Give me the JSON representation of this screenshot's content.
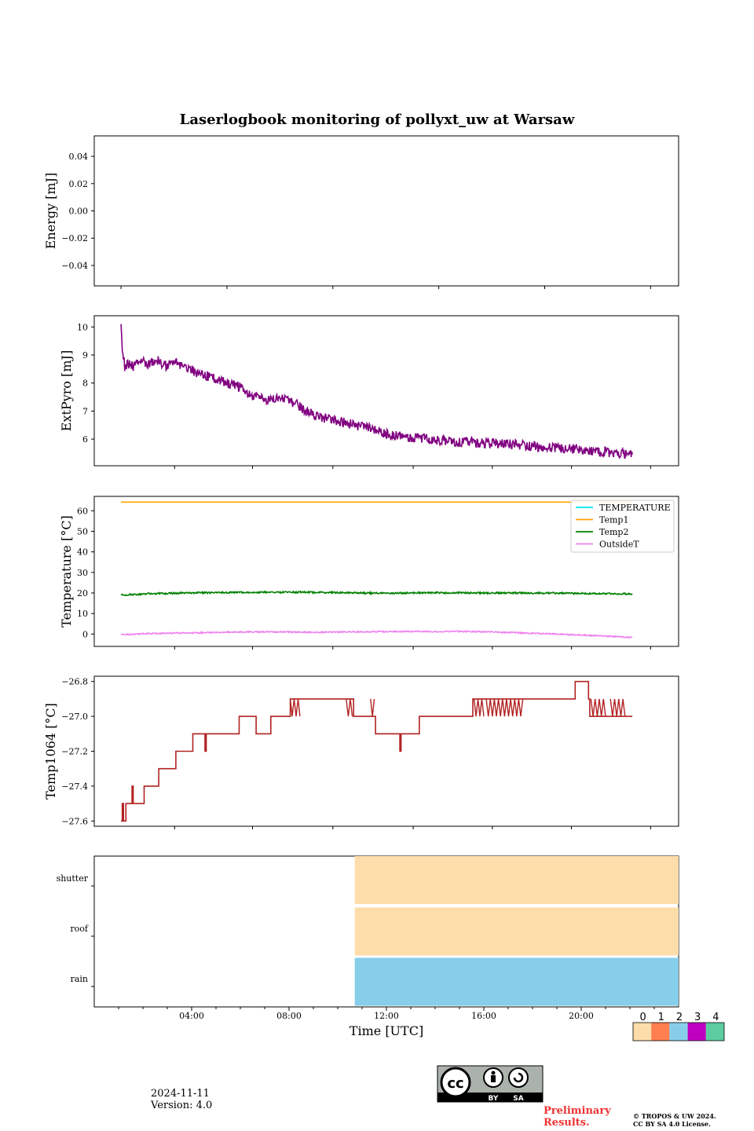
{
  "chart_data": [
    {
      "type": "line",
      "title": "Laserlogbook monitoring of pollyxt_uw at Warsaw",
      "ylabel": "Energy [mJ]",
      "ylim": [
        -0.055,
        0.055
      ],
      "yticks": [
        0.04,
        0.02,
        0.0,
        -0.02,
        -0.04
      ],
      "ytick_labels": [
        "0.04",
        "0.02",
        "0.00",
        "−0.02",
        "−0.04"
      ],
      "series": []
    },
    {
      "type": "line",
      "ylabel": "ExtPyro [mJ]",
      "ylim": [
        5.05,
        10.4
      ],
      "yticks": [
        10,
        9,
        8,
        7,
        6
      ],
      "ytick_labels": [
        "10",
        "9",
        "8",
        "7",
        "6"
      ],
      "series": [
        {
          "color": "#800080",
          "x_hours": [
            1.1,
            1.15,
            1.25,
            1.4,
            1.6,
            1.9,
            2.2,
            2.6,
            3.0,
            3.4,
            3.9,
            4.4,
            4.9,
            5.4,
            5.9,
            6.3,
            6.7,
            7.2,
            7.7,
            8.2,
            8.7,
            9.2,
            9.7,
            10.2,
            10.7,
            11.3,
            11.9,
            12.5,
            13.1,
            13.7,
            14.3,
            14.9,
            15.5,
            16.1,
            16.7,
            17.3,
            17.9,
            18.5,
            19.1,
            19.7,
            20.3,
            20.9,
            21.5,
            22.1
          ],
          "values": [
            10.1,
            9.3,
            8.6,
            8.7,
            8.6,
            8.8,
            8.7,
            8.8,
            8.6,
            8.7,
            8.5,
            8.3,
            8.2,
            8.0,
            7.9,
            7.6,
            7.5,
            7.4,
            7.5,
            7.3,
            7.0,
            6.8,
            6.7,
            6.6,
            6.5,
            6.4,
            6.2,
            6.1,
            6.05,
            6.0,
            5.95,
            5.9,
            5.9,
            5.85,
            5.85,
            5.8,
            5.75,
            5.7,
            5.7,
            5.65,
            5.6,
            5.55,
            5.5,
            5.45
          ]
        }
      ]
    },
    {
      "type": "line",
      "ylabel": "Temperature [°C]",
      "ylim": [
        -6,
        67
      ],
      "yticks": [
        60,
        50,
        40,
        30,
        20,
        10,
        0
      ],
      "ytick_labels": [
        "60",
        "50",
        "40",
        "30",
        "20",
        "10",
        "0"
      ],
      "legend_placement": "top-right",
      "series": [
        {
          "name": "TEMPERATURE",
          "color": "#00e5ee",
          "x_hours": [],
          "values": []
        },
        {
          "name": "Temp1",
          "color": "#ffa500",
          "x_hours": [
            1.1,
            22.1
          ],
          "values": [
            64.2,
            64.2
          ]
        },
        {
          "name": "Temp2",
          "color": "#008000",
          "x_hours": [
            1.1,
            2.0,
            3.0,
            4.0,
            5.0,
            6.0,
            7.0,
            8.0,
            9.0,
            10.0,
            11.0,
            12.0,
            13.0,
            14.0,
            15.0,
            16.0,
            17.0,
            18.0,
            19.0,
            20.0,
            21.0,
            22.1
          ],
          "values": [
            19.0,
            19.5,
            19.8,
            20.0,
            20.2,
            20.3,
            20.3,
            20.4,
            20.3,
            20.2,
            20.0,
            19.9,
            20.0,
            20.1,
            20.1,
            20.0,
            20.0,
            20.0,
            19.9,
            19.8,
            19.7,
            19.6
          ]
        },
        {
          "name": "OutsideT",
          "color": "#ee82ee",
          "x_hours": [
            1.1,
            2.0,
            3.0,
            4.0,
            5.0,
            6.0,
            7.0,
            8.0,
            9.0,
            10.0,
            11.0,
            12.0,
            13.0,
            14.0,
            15.0,
            16.0,
            17.0,
            18.0,
            19.0,
            20.0,
            21.0,
            22.1
          ],
          "values": [
            -0.3,
            0.2,
            0.4,
            0.6,
            0.8,
            1.0,
            1.1,
            1.0,
            0.9,
            1.0,
            1.1,
            1.2,
            1.3,
            1.2,
            1.3,
            1.1,
            0.8,
            0.4,
            0.0,
            -0.5,
            -1.0,
            -1.6
          ]
        }
      ]
    },
    {
      "type": "line",
      "ylabel": "Temp1064 [°C]",
      "ylim": [
        -27.63,
        -26.77
      ],
      "yticks": [
        -26.8,
        -27.0,
        -27.2,
        -27.4,
        -27.6
      ],
      "ytick_labels": [
        "−26.8",
        "−27.0",
        "−27.2",
        "−27.4",
        "−27.6"
      ],
      "series": [
        {
          "color": "#b22222",
          "x_hours": [
            1.1,
            1.15,
            1.2,
            1.25,
            1.3,
            1.35,
            1.5,
            1.55,
            1.6,
            1.65,
            2.0,
            2.05,
            2.6,
            2.65,
            2.7,
            3.3,
            3.35,
            3.4,
            4.0,
            4.05,
            4.5,
            4.55,
            4.6,
            5.9,
            5.95,
            6.6,
            6.65,
            6.7,
            7.2,
            7.25,
            8.0,
            8.05,
            8.5,
            8.55,
            10.6,
            10.65,
            11.5,
            11.55,
            12.5,
            12.55,
            12.6,
            13.3,
            13.35,
            14.0,
            14.05,
            15.5,
            15.55,
            18.0,
            18.05,
            19.7,
            19.75,
            20.3,
            20.35,
            22.1
          ],
          "values": [
            -27.6,
            -27.5,
            -27.6,
            -27.6,
            -27.5,
            -27.5,
            -27.5,
            -27.4,
            -27.5,
            -27.5,
            -27.5,
            -27.4,
            -27.4,
            -27.3,
            -27.3,
            -27.3,
            -27.2,
            -27.2,
            -27.2,
            -27.1,
            -27.1,
            -27.2,
            -27.1,
            -27.1,
            -27.0,
            -27.0,
            -27.1,
            -27.1,
            -27.1,
            -27.0,
            -27.0,
            -26.9,
            -26.9,
            -26.9,
            -26.9,
            -27.0,
            -27.0,
            -27.1,
            -27.1,
            -27.2,
            -27.1,
            -27.1,
            -27.0,
            -27.0,
            -27.0,
            -27.0,
            -26.9,
            -26.9,
            -26.9,
            -26.9,
            -26.8,
            -26.9,
            -27.0,
            -27.0
          ]
        }
      ]
    },
    {
      "type": "heatmap",
      "rows": [
        "shutter",
        "roof",
        "rain"
      ],
      "xlabel": "Time [UTC]",
      "xtick_labels": [
        "04:00",
        "08:00",
        "12:00",
        "16:00",
        "20:00"
      ],
      "xticks_hours": [
        4,
        8,
        12,
        16,
        20
      ],
      "xlim_hours": [
        0,
        24
      ],
      "segments": [
        {
          "row": "shutter",
          "start_hour": 10.7,
          "end_hour": 24,
          "status": 0
        },
        {
          "row": "roof",
          "start_hour": 10.7,
          "end_hour": 24,
          "status": 0
        },
        {
          "row": "rain",
          "start_hour": 10.7,
          "end_hour": 24,
          "status": 2
        }
      ],
      "colorbar": {
        "labels": [
          "0",
          "1",
          "2",
          "3",
          "4"
        ],
        "colors": [
          "#fddeab",
          "#ff7f50",
          "#87ceeb",
          "#c000c0",
          "#5dcca0"
        ]
      }
    }
  ],
  "footer": {
    "date": "2024-11-11",
    "version": "Version: 4.0",
    "prelim_line1": "Preliminary",
    "prelim_line2": "Results.",
    "copyright_line1": "© TROPOS & UW 2024.",
    "copyright_line2": "CC BY SA 4.0 License.",
    "cc_badge_by": "BY",
    "cc_badge_sa": "SA",
    "cc_badge_cc": "cc"
  },
  "colors": {
    "axis": "#000000",
    "panel_bg": "#ffffff"
  }
}
